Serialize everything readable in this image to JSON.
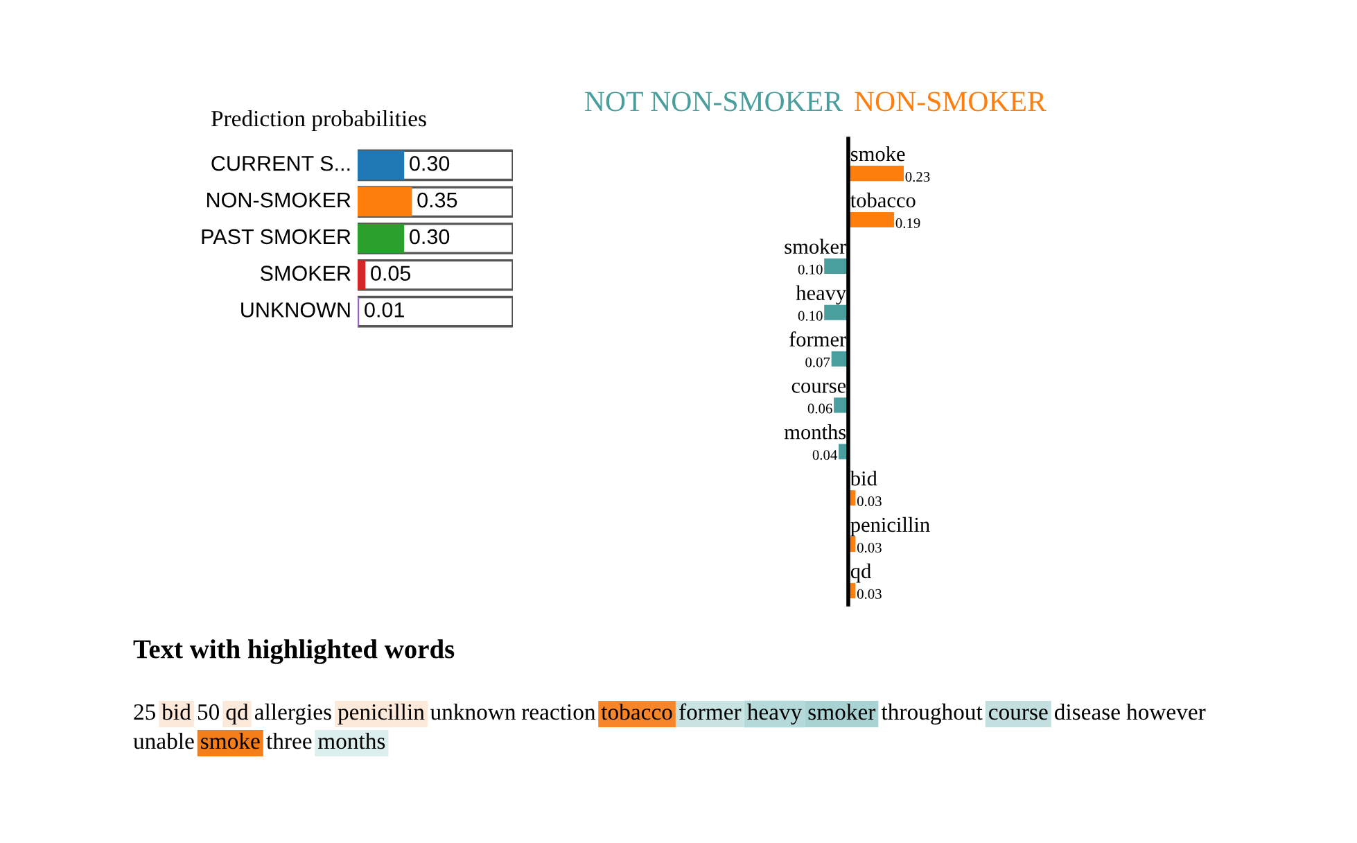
{
  "chart_data": [
    {
      "type": "bar",
      "orientation": "horizontal",
      "title": "Prediction probabilities",
      "categories": [
        "CURRENT S...",
        "NON-SMOKER",
        "PAST SMOKER",
        "SMOKER",
        "UNKNOWN"
      ],
      "values": [
        0.3,
        0.35,
        0.3,
        0.05,
        0.01
      ],
      "colors": [
        "#1f77b4",
        "#ff7f0e",
        "#2ca02c",
        "#d62728",
        "#9467bd"
      ],
      "value_labels": [
        "0.30",
        "0.35",
        "0.30",
        "0.05",
        "0.01"
      ],
      "xlim": [
        0,
        1
      ],
      "tick_labels": false
    },
    {
      "type": "bar",
      "orientation": "horizontal",
      "title": "NOT NON-SMOKER",
      "categories": [
        null,
        null,
        "smoker",
        "heavy",
        "former",
        "course",
        "months",
        null,
        null,
        null
      ],
      "series": [
        {
          "color": "#4a9e9e",
          "values": [
            null,
            null,
            0.1,
            0.1,
            0.07,
            0.06,
            0.04,
            null,
            null,
            null
          ],
          "value_labels": [
            null,
            null,
            "0.10",
            "0.10",
            "0.07",
            "0.06",
            "0.04",
            null,
            null,
            null
          ]
        }
      ],
      "tick_labels": false
    },
    {
      "type": "bar",
      "orientation": "horizontal",
      "title": "NON-SMOKER",
      "categories": [
        "smoke",
        "tobacco",
        null,
        null,
        null,
        null,
        null,
        "bid",
        "penicillin",
        "qd"
      ],
      "series": [
        {
          "color": "#ff7f0e",
          "values": [
            0.23,
            0.19,
            null,
            null,
            null,
            null,
            null,
            0.03,
            0.03,
            0.03
          ],
          "value_labels": [
            "0.23",
            "0.19",
            null,
            null,
            null,
            null,
            null,
            "0.03",
            "0.03",
            "0.03"
          ]
        }
      ],
      "tick_labels": false
    },
    {
      "type": "other",
      "title": "Text with highlighted words",
      "categories": [
        "25",
        "bid",
        "50",
        "qd",
        "allergies",
        "penicillin",
        "unknown",
        "reaction",
        "tobacco",
        "former",
        "heavy",
        "smoker",
        "throughout",
        "course",
        "disease",
        "however",
        "unable",
        "smoke",
        "three",
        "months"
      ],
      "colors": [
        null,
        "#fde9d9",
        null,
        "#fde9d9",
        null,
        "#fde9d9",
        null,
        null,
        "#f7862a",
        "#c9e3e3",
        "#b6dada",
        "#a9d3d3",
        null,
        "#c3dfdf",
        null,
        null,
        null,
        "#f47e1a",
        null,
        "#ddeeee"
      ]
    }
  ]
}
